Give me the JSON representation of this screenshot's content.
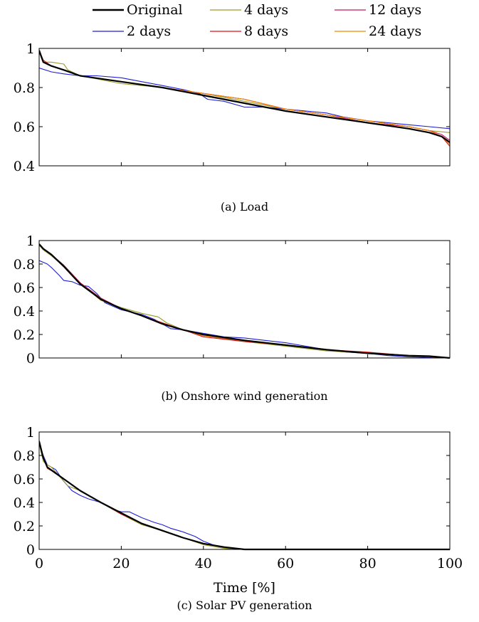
{
  "legend": [
    {
      "name": "Original",
      "color": "#000000"
    },
    {
      "name": "4 days",
      "color": "#9a9a2a"
    },
    {
      "name": "12 days",
      "color": "#c2185b"
    },
    {
      "name": "2 days",
      "color": "#1f1fd1"
    },
    {
      "name": "8 days",
      "color": "#e01010"
    },
    {
      "name": "24 days",
      "color": "#f08a00"
    }
  ],
  "chart_data": [
    {
      "type": "line",
      "caption": "(a) Load",
      "xlim": [
        0,
        100
      ],
      "ylim": [
        0.4,
        1
      ],
      "yticks": [
        "0.4",
        "0.6",
        "0.8",
        "1"
      ],
      "ytick_values": [
        0.4,
        0.6,
        0.8,
        1.0
      ],
      "xticks": [],
      "series": [
        {
          "name": "Original",
          "x": [
            0,
            1,
            3,
            6,
            10,
            20,
            30,
            40,
            50,
            60,
            70,
            80,
            90,
            95,
            98,
            100
          ],
          "values": [
            0.99,
            0.93,
            0.91,
            0.89,
            0.86,
            0.83,
            0.8,
            0.76,
            0.72,
            0.68,
            0.65,
            0.62,
            0.59,
            0.57,
            0.55,
            0.52
          ]
        },
        {
          "name": "2 days",
          "x": [
            0,
            3,
            6,
            10,
            14,
            20,
            25,
            30,
            35,
            39,
            41,
            45,
            50,
            55,
            60,
            65,
            70,
            74,
            80,
            85,
            90,
            95,
            100
          ],
          "values": [
            0.9,
            0.88,
            0.87,
            0.86,
            0.86,
            0.85,
            0.83,
            0.81,
            0.79,
            0.77,
            0.74,
            0.73,
            0.7,
            0.7,
            0.69,
            0.68,
            0.67,
            0.65,
            0.63,
            0.62,
            0.61,
            0.6,
            0.59
          ]
        },
        {
          "name": "4 days",
          "x": [
            0,
            1,
            3,
            6,
            7,
            10,
            20,
            30,
            40,
            50,
            60,
            70,
            80,
            90,
            95,
            100
          ],
          "values": [
            0.98,
            0.93,
            0.93,
            0.92,
            0.89,
            0.86,
            0.82,
            0.8,
            0.77,
            0.73,
            0.69,
            0.66,
            0.63,
            0.6,
            0.58,
            0.57
          ]
        },
        {
          "name": "8 days",
          "x": [
            0,
            1,
            3,
            6,
            10,
            20,
            30,
            40,
            50,
            60,
            70,
            80,
            90,
            95,
            98,
            100
          ],
          "values": [
            0.99,
            0.94,
            0.91,
            0.89,
            0.86,
            0.83,
            0.8,
            0.77,
            0.74,
            0.69,
            0.66,
            0.63,
            0.6,
            0.58,
            0.55,
            0.5
          ]
        },
        {
          "name": "12 days",
          "x": [
            0,
            1,
            3,
            6,
            10,
            20,
            30,
            40,
            50,
            60,
            70,
            80,
            90,
            95,
            98,
            100
          ],
          "values": [
            0.98,
            0.93,
            0.91,
            0.89,
            0.86,
            0.83,
            0.8,
            0.77,
            0.74,
            0.69,
            0.66,
            0.62,
            0.6,
            0.58,
            0.56,
            0.53
          ]
        },
        {
          "name": "24 days",
          "x": [
            0,
            1,
            3,
            6,
            10,
            20,
            30,
            40,
            50,
            60,
            70,
            80,
            90,
            95,
            98,
            100
          ],
          "values": [
            0.99,
            0.93,
            0.91,
            0.89,
            0.86,
            0.83,
            0.8,
            0.77,
            0.74,
            0.69,
            0.66,
            0.63,
            0.6,
            0.58,
            0.55,
            0.51
          ]
        }
      ]
    },
    {
      "type": "line",
      "caption": "(b) Onshore wind generation",
      "xlim": [
        0,
        100
      ],
      "ylim": [
        0,
        1
      ],
      "yticks": [
        "0",
        "0.2",
        "0.4",
        "0.6",
        "0.8",
        "1"
      ],
      "ytick_values": [
        0,
        0.2,
        0.4,
        0.6,
        0.8,
        1.0
      ],
      "xticks": [],
      "series": [
        {
          "name": "Original",
          "x": [
            0,
            1,
            3,
            6,
            10,
            15,
            20,
            25,
            30,
            35,
            40,
            50,
            60,
            70,
            80,
            90,
            95,
            100
          ],
          "values": [
            0.97,
            0.93,
            0.88,
            0.78,
            0.63,
            0.5,
            0.42,
            0.36,
            0.29,
            0.24,
            0.2,
            0.15,
            0.11,
            0.07,
            0.04,
            0.02,
            0.015,
            0.0
          ]
        },
        {
          "name": "2 days",
          "x": [
            0,
            2,
            3,
            5,
            6,
            8,
            10,
            12,
            14,
            16,
            18,
            20,
            25,
            28,
            30,
            32,
            35,
            40,
            45,
            50,
            55,
            60,
            65,
            70,
            75,
            80,
            85,
            90,
            95,
            100
          ],
          "values": [
            0.83,
            0.8,
            0.77,
            0.7,
            0.66,
            0.65,
            0.62,
            0.61,
            0.55,
            0.47,
            0.44,
            0.41,
            0.37,
            0.33,
            0.29,
            0.25,
            0.24,
            0.21,
            0.18,
            0.17,
            0.15,
            0.13,
            0.1,
            0.07,
            0.05,
            0.04,
            0.02,
            0.01,
            0.005,
            0.0
          ]
        },
        {
          "name": "4 days",
          "x": [
            0,
            1,
            3,
            6,
            10,
            15,
            20,
            25,
            29,
            31,
            35,
            40,
            50,
            60,
            70,
            80,
            90,
            100
          ],
          "values": [
            0.96,
            0.92,
            0.87,
            0.78,
            0.64,
            0.49,
            0.43,
            0.38,
            0.35,
            0.3,
            0.24,
            0.19,
            0.14,
            0.1,
            0.06,
            0.04,
            0.02,
            0.0
          ]
        },
        {
          "name": "8 days",
          "x": [
            0,
            1,
            3,
            6,
            10,
            15,
            20,
            25,
            30,
            35,
            40,
            50,
            60,
            70,
            80,
            90,
            100
          ],
          "values": [
            0.97,
            0.93,
            0.88,
            0.79,
            0.64,
            0.51,
            0.42,
            0.36,
            0.3,
            0.24,
            0.18,
            0.14,
            0.11,
            0.07,
            0.05,
            0.02,
            0.0
          ]
        },
        {
          "name": "12 days",
          "x": [
            0,
            1,
            3,
            6,
            10,
            15,
            20,
            25,
            30,
            35,
            40,
            50,
            60,
            70,
            80,
            90,
            100
          ],
          "values": [
            0.97,
            0.93,
            0.88,
            0.79,
            0.64,
            0.51,
            0.42,
            0.36,
            0.29,
            0.24,
            0.19,
            0.15,
            0.11,
            0.07,
            0.04,
            0.02,
            0.0
          ]
        },
        {
          "name": "24 days",
          "x": [
            0,
            1,
            3,
            6,
            10,
            15,
            20,
            25,
            30,
            35,
            40,
            50,
            60,
            70,
            80,
            90,
            100
          ],
          "values": [
            0.97,
            0.93,
            0.88,
            0.78,
            0.63,
            0.5,
            0.42,
            0.36,
            0.29,
            0.24,
            0.19,
            0.15,
            0.11,
            0.07,
            0.04,
            0.02,
            0.0
          ]
        }
      ]
    },
    {
      "type": "line",
      "caption": "(c) Solar PV generation",
      "xlabel": "Time [%]",
      "xlim": [
        0,
        100
      ],
      "ylim": [
        0,
        1
      ],
      "yticks": [
        "0",
        "0.2",
        "0.4",
        "0.6",
        "0.8",
        "1"
      ],
      "ytick_values": [
        0,
        0.2,
        0.4,
        0.6,
        0.8,
        1.0
      ],
      "xticks": [
        "0",
        "20",
        "40",
        "60",
        "80",
        "100"
      ],
      "xtick_values": [
        0,
        20,
        40,
        60,
        80,
        100
      ],
      "series": [
        {
          "name": "Original",
          "x": [
            0,
            1,
            2,
            4,
            6,
            10,
            15,
            20,
            25,
            30,
            35,
            40,
            45,
            50,
            60,
            80,
            100
          ],
          "values": [
            0.92,
            0.78,
            0.7,
            0.65,
            0.6,
            0.5,
            0.4,
            0.31,
            0.22,
            0.16,
            0.1,
            0.05,
            0.02,
            0.0,
            0.0,
            0.0,
            0.0
          ]
        },
        {
          "name": "2 days",
          "x": [
            0,
            1,
            2,
            4,
            6,
            8,
            10,
            12,
            15,
            18,
            20,
            22,
            25,
            28,
            30,
            32,
            35,
            38,
            40,
            43,
            45,
            50,
            60,
            80,
            100
          ],
          "values": [
            0.9,
            0.8,
            0.72,
            0.68,
            0.58,
            0.5,
            0.46,
            0.43,
            0.4,
            0.34,
            0.32,
            0.32,
            0.27,
            0.23,
            0.21,
            0.18,
            0.15,
            0.11,
            0.07,
            0.03,
            0.01,
            0.0,
            0.0,
            0.0,
            0.0
          ]
        },
        {
          "name": "4 days",
          "x": [
            0,
            1,
            2,
            3,
            5,
            7,
            10,
            15,
            20,
            25,
            30,
            35,
            40,
            45,
            50,
            60,
            100
          ],
          "values": [
            0.9,
            0.75,
            0.72,
            0.7,
            0.62,
            0.54,
            0.5,
            0.4,
            0.3,
            0.21,
            0.16,
            0.1,
            0.04,
            0.01,
            0.0,
            0.0,
            0.0
          ]
        },
        {
          "name": "8 days",
          "x": [
            0,
            1,
            2,
            4,
            6,
            10,
            15,
            20,
            25,
            30,
            35,
            40,
            45,
            50,
            60,
            100
          ],
          "values": [
            0.93,
            0.78,
            0.69,
            0.65,
            0.6,
            0.5,
            0.4,
            0.3,
            0.22,
            0.16,
            0.1,
            0.05,
            0.02,
            0.0,
            0.0,
            0.0
          ]
        },
        {
          "name": "12 days",
          "x": [
            0,
            1,
            2,
            4,
            6,
            10,
            15,
            20,
            25,
            30,
            35,
            40,
            45,
            50,
            60,
            100
          ],
          "values": [
            0.92,
            0.78,
            0.7,
            0.65,
            0.6,
            0.5,
            0.4,
            0.31,
            0.22,
            0.16,
            0.1,
            0.05,
            0.02,
            0.0,
            0.0,
            0.0
          ]
        },
        {
          "name": "24 days",
          "x": [
            0,
            1,
            2,
            4,
            6,
            10,
            15,
            20,
            25,
            30,
            35,
            40,
            45,
            50,
            60,
            100
          ],
          "values": [
            0.92,
            0.79,
            0.7,
            0.65,
            0.6,
            0.5,
            0.4,
            0.31,
            0.22,
            0.16,
            0.1,
            0.05,
            0.02,
            0.0,
            0.0,
            0.0
          ]
        }
      ]
    }
  ]
}
